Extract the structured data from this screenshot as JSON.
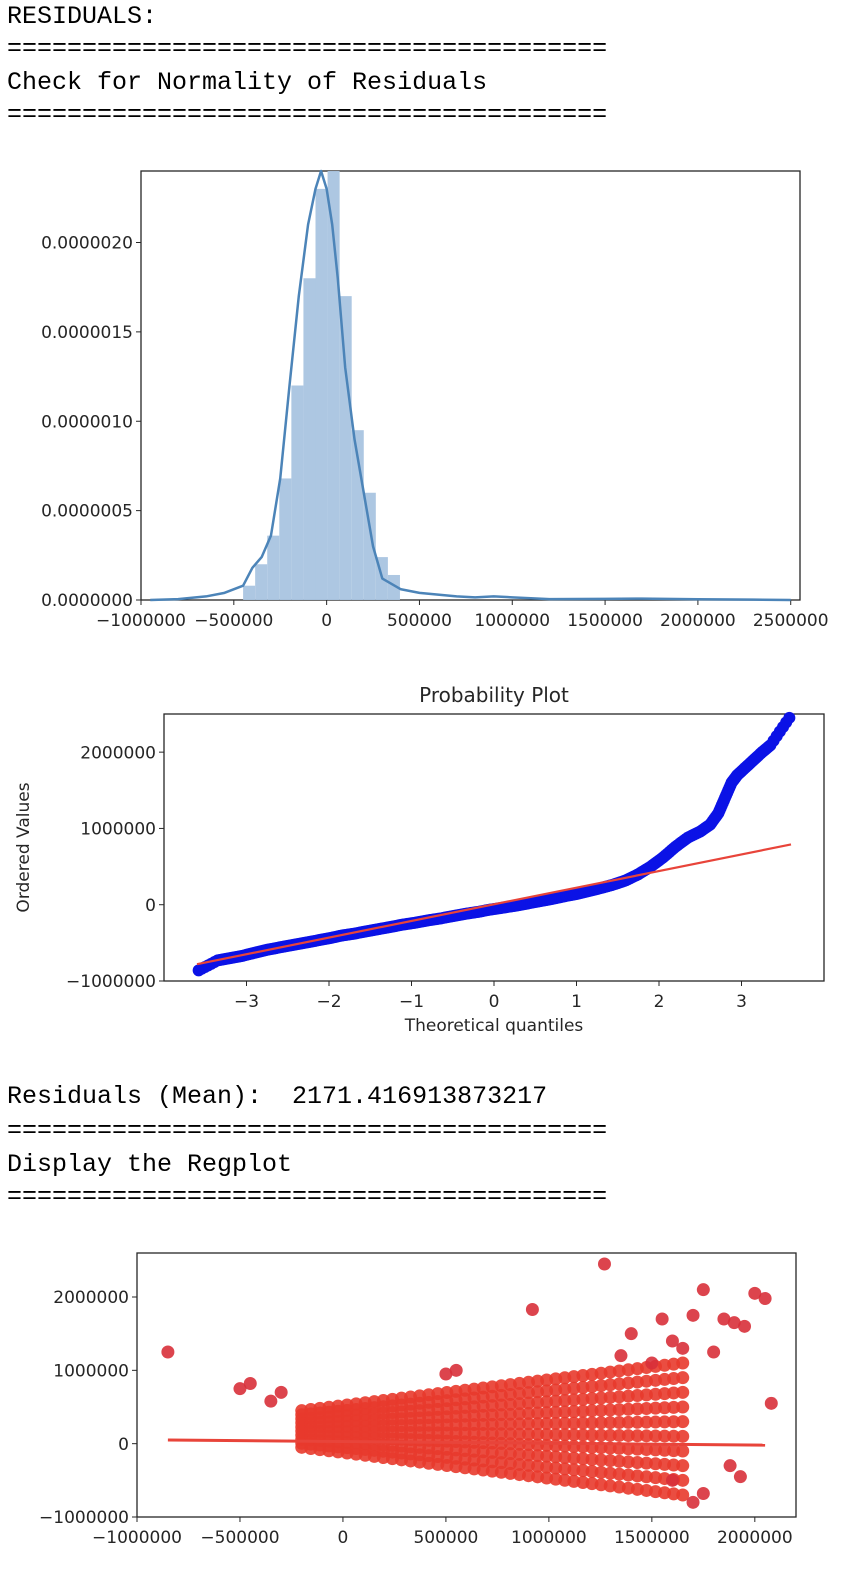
{
  "console": {
    "header": "RESIDUALS:",
    "sep": "========================================",
    "check_normality": "Check for Normality of Residuals",
    "residuals_mean": "Residuals (Mean):  2171.416913873217",
    "display_regplot": "Display the Regplot"
  },
  "colors": {
    "hist_fill": "#a9c4e0",
    "kde_line": "#4c84b8",
    "qq_points": "#0b12e6",
    "qq_line": "#e8443a",
    "reg_points": "#e83a2c",
    "reg_line": "#e8443a"
  },
  "chart_data": [
    {
      "type": "bar",
      "subtype": "histogram-with-kde",
      "title": "",
      "xlabel": "",
      "ylabel": "",
      "xlim": [
        -1000000,
        2550000
      ],
      "ylim": [
        0,
        2.4e-06
      ],
      "xticks": [
        -1000000,
        -500000,
        0,
        500000,
        1000000,
        1500000,
        2000000,
        2500000
      ],
      "xtick_labels": [
        "−1000000",
        "−500000",
        "0",
        "500000",
        "1000000",
        "1500000",
        "2000000",
        "2500000"
      ],
      "yticks": [
        0,
        5e-07,
        1e-06,
        1.5e-06,
        2e-06
      ],
      "ytick_labels": [
        "0.0000000",
        "0.0000005",
        "0.0000010",
        "0.0000015",
        "0.0000020"
      ],
      "bins": {
        "start": -450000,
        "width": 65000,
        "values": [
          8e-08,
          2e-07,
          3.6e-07,
          6.8e-07,
          1.2e-06,
          1.8e-06,
          2.3e-06,
          2.4e-06,
          1.7e-06,
          9.5e-07,
          6e-07,
          2.4e-07,
          1.4e-07
        ]
      },
      "kde": {
        "x": [
          -950000,
          -800000,
          -650000,
          -550000,
          -450000,
          -400000,
          -350000,
          -300000,
          -250000,
          -200000,
          -150000,
          -100000,
          -60000,
          -30000,
          0,
          30000,
          60000,
          100000,
          150000,
          200000,
          250000,
          300000,
          350000,
          400000,
          500000,
          600000,
          700000,
          800000,
          900000,
          1000000,
          1200000,
          1500000,
          1700000,
          2000000,
          2300000,
          2500000
        ],
        "y": [
          0.0,
          5e-09,
          2e-08,
          4e-08,
          8e-08,
          1.8e-07,
          2.4e-07,
          3.6e-07,
          6.8e-07,
          1.2e-06,
          1.7e-06,
          2.1e-06,
          2.3e-06,
          2.4e-06,
          2.3e-06,
          2.1e-06,
          1.8e-06,
          1.3e-06,
          9e-07,
          6e-07,
          3e-07,
          1.2e-07,
          9e-08,
          6e-08,
          4e-08,
          3e-08,
          2e-08,
          1.5e-08,
          2e-08,
          1.5e-08,
          5e-09,
          6e-09,
          8e-09,
          4e-09,
          2e-09,
          0.0
        ]
      }
    },
    {
      "type": "scatter",
      "subtype": "qq-plot",
      "title": "Probability Plot",
      "xlabel": "Theoretical quantiles",
      "ylabel": "Ordered Values",
      "xlim": [
        -4.0,
        4.0
      ],
      "ylim": [
        -1000000,
        2500000
      ],
      "xticks": [
        -3,
        -2,
        -1,
        0,
        1,
        2,
        3
      ],
      "xtick_labels": [
        "−3",
        "−2",
        "−1",
        "0",
        "1",
        "2",
        "3"
      ],
      "yticks": [
        -1000000,
        0,
        1000000,
        2000000
      ],
      "ytick_labels": [
        "−1000000",
        "0",
        "1000000",
        "2000000"
      ],
      "fit_line": {
        "x": [
          -3.6,
          3.6
        ],
        "y": [
          -780000,
          790000
        ]
      },
      "points": {
        "x": [
          -3.58,
          -3.35,
          -3.2,
          -3.05,
          -2.9,
          -2.75,
          -2.6,
          -2.45,
          -2.3,
          -2.15,
          -2.0,
          -1.85,
          -1.7,
          -1.55,
          -1.4,
          -1.25,
          -1.1,
          -0.95,
          -0.8,
          -0.65,
          -0.5,
          -0.35,
          -0.2,
          -0.05,
          0.1,
          0.25,
          0.4,
          0.55,
          0.7,
          0.85,
          1.0,
          1.15,
          1.3,
          1.45,
          1.6,
          1.75,
          1.9,
          2.05,
          2.2,
          2.35,
          2.5,
          2.62,
          2.72,
          2.8,
          2.88,
          2.95,
          3.05,
          3.15,
          3.25,
          3.35,
          3.58
        ],
        "y": [
          -860000,
          -730000,
          -700000,
          -670000,
          -630000,
          -590000,
          -560000,
          -530000,
          -500000,
          -470000,
          -440000,
          -405000,
          -380000,
          -350000,
          -320000,
          -290000,
          -260000,
          -235000,
          -205000,
          -180000,
          -150000,
          -120000,
          -95000,
          -65000,
          -40000,
          -15000,
          15000,
          45000,
          75000,
          110000,
          140000,
          180000,
          220000,
          265000,
          320000,
          400000,
          500000,
          620000,
          760000,
          880000,
          960000,
          1050000,
          1200000,
          1400000,
          1600000,
          1700000,
          1800000,
          1900000,
          2000000,
          2090000,
          2450000
        ]
      }
    },
    {
      "type": "scatter",
      "subtype": "regplot",
      "title": "",
      "xlabel": "",
      "ylabel": "",
      "xlim": [
        -1000000,
        2200000
      ],
      "ylim": [
        -1000000,
        2600000
      ],
      "xticks": [
        -1000000,
        -500000,
        0,
        500000,
        1000000,
        1500000,
        2000000
      ],
      "xtick_labels": [
        "−1000000",
        "−500000",
        "0",
        "500000",
        "1000000",
        "1500000",
        "2000000"
      ],
      "yticks": [
        -1000000,
        0,
        1000000,
        2000000
      ],
      "ytick_labels": [
        "−1000000",
        "0",
        "1000000",
        "2000000"
      ],
      "fit_line": {
        "x": [
          -850000,
          2050000
        ],
        "y": [
          50000,
          -20000
        ]
      },
      "cluster": {
        "x_range": [
          -200000,
          1650000
        ],
        "y_min_at_left": -50000,
        "y_min_at_right": -700000,
        "y_max_at_left": 450000,
        "y_max_at_right": 1100000
      },
      "outliers": {
        "x": [
          -850000,
          -500000,
          -450000,
          -350000,
          -300000,
          500000,
          550000,
          920000,
          1270000,
          1350000,
          1400000,
          1500000,
          1550000,
          1600000,
          1650000,
          1700000,
          1750000,
          1800000,
          1850000,
          1900000,
          1950000,
          2000000,
          2050000,
          2080000,
          1880000,
          1930000,
          1700000,
          1750000,
          1600000
        ],
        "y": [
          1250000,
          750000,
          820000,
          580000,
          700000,
          950000,
          1000000,
          1830000,
          2450000,
          1200000,
          1500000,
          1100000,
          1700000,
          1400000,
          1300000,
          1750000,
          2100000,
          1250000,
          1700000,
          1650000,
          1600000,
          2050000,
          1980000,
          550000,
          -300000,
          -450000,
          -800000,
          -680000,
          -500000
        ]
      }
    }
  ]
}
